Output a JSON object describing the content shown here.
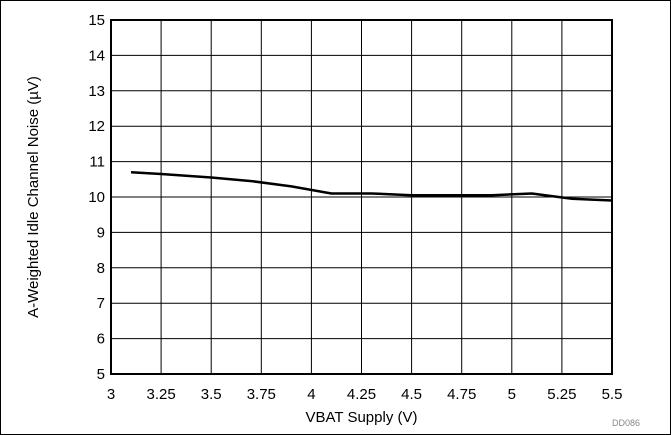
{
  "chart_data": {
    "type": "line",
    "title": "",
    "xlabel": "VBAT Supply (V)",
    "ylabel": "A-Weighted Idle Channel Noise (µV)",
    "xlim": [
      3,
      5.5
    ],
    "ylim": [
      5,
      15
    ],
    "xticks": [
      "3",
      "3.25",
      "3.5",
      "3.75",
      "4",
      "4.25",
      "4.5",
      "4.75",
      "5",
      "5.25",
      "5.5"
    ],
    "yticks": [
      "5",
      "6",
      "7",
      "8",
      "9",
      "10",
      "11",
      "12",
      "13",
      "14",
      "15"
    ],
    "grid": true,
    "series": [
      {
        "color": "#000000",
        "x": [
          3.1,
          3.25,
          3.5,
          3.7,
          3.9,
          4.1,
          4.3,
          4.5,
          4.7,
          4.9,
          5.1,
          5.3,
          5.5
        ],
        "y": [
          10.7,
          10.65,
          10.55,
          10.45,
          10.3,
          10.1,
          10.1,
          10.05,
          10.05,
          10.05,
          10.1,
          9.95,
          9.9
        ]
      }
    ],
    "code_label": "DD086"
  }
}
